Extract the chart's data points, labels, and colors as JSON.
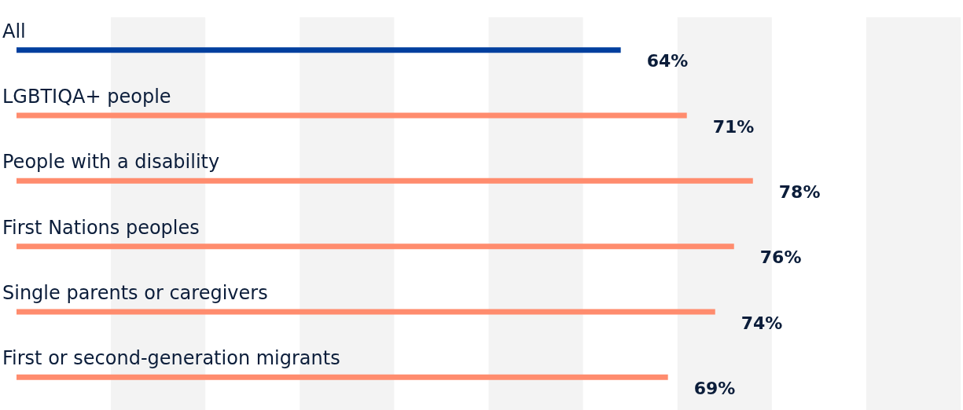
{
  "chart_data": {
    "type": "bar",
    "orientation": "horizontal",
    "categories": [
      "All",
      "LGBTIQA+ people",
      "People with a disability",
      "First Nations peoples",
      "Single parents or caregivers",
      "First or second-generation migrants"
    ],
    "values": [
      64,
      71,
      78,
      76,
      74,
      69
    ],
    "colors": [
      "#003f9e",
      "#ff8c6e",
      "#ff8c6e",
      "#ff8c6e",
      "#ff8c6e",
      "#ff8c6e"
    ],
    "value_labels": [
      "64%",
      "71%",
      "78%",
      "76%",
      "74%",
      "69%"
    ],
    "xlim": [
      0,
      100
    ],
    "bands": [
      {
        "axis": "x",
        "from": 10,
        "to": 20,
        "color": "#f3f3f3"
      },
      {
        "axis": "x",
        "from": 30,
        "to": 40,
        "color": "#f3f3f3"
      },
      {
        "axis": "x",
        "from": 50,
        "to": 60,
        "color": "#f3f3f3"
      },
      {
        "axis": "x",
        "from": 70,
        "to": 80,
        "color": "#f3f3f3"
      },
      {
        "axis": "x",
        "from": 90,
        "to": 100,
        "color": "#f3f3f3"
      }
    ],
    "tick_labels": "y"
  }
}
